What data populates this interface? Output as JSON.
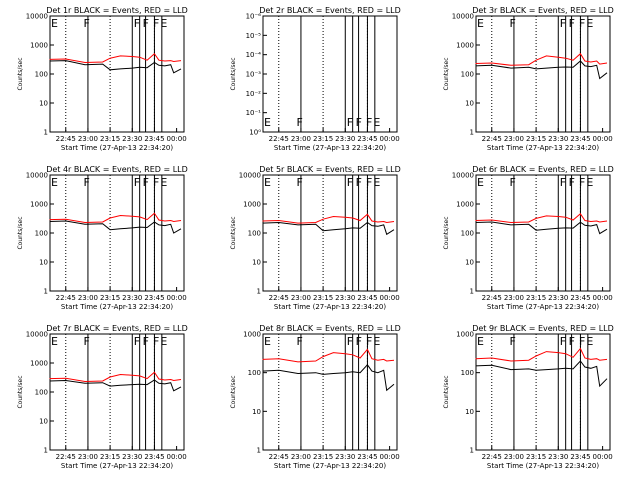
{
  "figure": {
    "background": "#ffffff",
    "event_color": "#000000",
    "lld_color": "#ff0000"
  },
  "chart_data": [
    {
      "type": "line",
      "title": "Det 1r BLACK = Events, RED = LLD",
      "xlabel": "Start Time (27-Apr-13 22:34:20)",
      "ylabel": "Counts/sec",
      "xlim": [
        "22:34:20",
        "00:05:00"
      ],
      "yscale": "log",
      "ylim": [
        1,
        10000
      ],
      "x_ticks": [
        "22:45",
        "23:00",
        "23:15",
        "23:30",
        "23:45",
        "00:00"
      ],
      "y_ticks": [
        "1",
        "10",
        "100",
        "1000",
        "10000"
      ],
      "flag_letters": [
        "E",
        "F",
        "F",
        "F",
        "F",
        "E"
      ],
      "x": [
        "22:34",
        "22:45",
        "22:58",
        "23:10",
        "23:15",
        "23:22",
        "23:30",
        "23:35",
        "23:40",
        "23:45",
        "23:48",
        "23:52",
        "23:56",
        "23:58",
        "00:03"
      ],
      "series": [
        {
          "values": [
            280,
            290,
            210,
            220,
            140,
            150,
            160,
            170,
            165,
            250,
            200,
            190,
            210,
            110,
            150
          ]
        },
        {
          "values": [
            320,
            330,
            250,
            260,
            350,
            420,
            400,
            380,
            300,
            500,
            300,
            280,
            290,
            270,
            290
          ]
        }
      ]
    },
    {
      "type": "line",
      "title": "Det 2r BLACK = Events, RED = LLD",
      "xlabel": "Start Time (27-Apr-13 22:34:20)",
      "ylabel": "Counts/sec",
      "xlim": [
        "22:34:20",
        "00:05:00"
      ],
      "yscale": "log",
      "ylim": [
        1,
        1e-06
      ],
      "x_ticks": [
        "22:45",
        "23:00",
        "23:15",
        "23:30",
        "23:45",
        "00:00"
      ],
      "y_ticks": [
        "10⁰",
        "10⁻¹",
        "10⁻²",
        "10⁻³",
        "10⁻⁴",
        "10⁻⁵",
        "10⁻⁶"
      ],
      "flag_letters": [
        "E",
        "F",
        "F",
        "F",
        "F",
        "E"
      ],
      "x": [],
      "series": []
    },
    {
      "type": "line",
      "title": "Det 3r BLACK = Events, RED = LLD",
      "xlabel": "Start Time (27-Apr-13 22:34:20)",
      "ylabel": "Counts/sec",
      "xlim": [
        "22:34:20",
        "00:05:00"
      ],
      "yscale": "log",
      "ylim": [
        1,
        10000
      ],
      "x_ticks": [
        "22:45",
        "23:00",
        "23:15",
        "23:30",
        "23:45",
        "00:00"
      ],
      "y_ticks": [
        "1",
        "10",
        "100",
        "1000",
        "10000"
      ],
      "flag_letters": [
        "E",
        "F",
        "F",
        "F",
        "F",
        "E"
      ],
      "x": [
        "22:34",
        "22:45",
        "22:58",
        "23:10",
        "23:15",
        "23:22",
        "23:30",
        "23:35",
        "23:40",
        "23:45",
        "23:48",
        "23:52",
        "23:56",
        "23:58",
        "00:03"
      ],
      "series": [
        {
          "values": [
            190,
            200,
            160,
            170,
            150,
            160,
            170,
            175,
            170,
            280,
            190,
            180,
            200,
            70,
            110
          ]
        },
        {
          "values": [
            230,
            240,
            200,
            210,
            300,
            420,
            380,
            350,
            300,
            500,
            280,
            260,
            280,
            220,
            240
          ]
        }
      ]
    },
    {
      "type": "line",
      "title": "Det 4r BLACK = Events, RED = LLD",
      "xlabel": "Start Time (27-Apr-13 22:34:20)",
      "ylabel": "Counts/sec",
      "xlim": [
        "22:34:20",
        "00:05:00"
      ],
      "yscale": "log",
      "ylim": [
        1,
        10000
      ],
      "x_ticks": [
        "22:45",
        "23:00",
        "23:15",
        "23:30",
        "23:45",
        "00:00"
      ],
      "y_ticks": [
        "1",
        "10",
        "100",
        "1000",
        "10000"
      ],
      "flag_letters": [
        "E",
        "F",
        "F",
        "F",
        "F",
        "E"
      ],
      "x": [
        "22:34",
        "22:45",
        "22:58",
        "23:10",
        "23:15",
        "23:22",
        "23:30",
        "23:35",
        "23:40",
        "23:45",
        "23:48",
        "23:52",
        "23:56",
        "23:58",
        "00:03"
      ],
      "series": [
        {
          "values": [
            250,
            260,
            200,
            210,
            130,
            140,
            150,
            160,
            155,
            240,
            190,
            180,
            200,
            100,
            140
          ]
        },
        {
          "values": [
            290,
            300,
            230,
            240,
            330,
            400,
            380,
            360,
            290,
            480,
            280,
            260,
            270,
            250,
            270
          ]
        }
      ]
    },
    {
      "type": "line",
      "title": "Det 5r BLACK = Events, RED = LLD",
      "xlabel": "Start Time (27-Apr-13 22:34:20)",
      "ylabel": "Counts/sec",
      "xlim": [
        "22:34:20",
        "00:05:00"
      ],
      "yscale": "log",
      "ylim": [
        1,
        10000
      ],
      "x_ticks": [
        "22:45",
        "23:00",
        "23:15",
        "23:30",
        "23:45",
        "00:00"
      ],
      "y_ticks": [
        "1",
        "10",
        "100",
        "1000",
        "10000"
      ],
      "flag_letters": [
        "E",
        "F",
        "F",
        "F",
        "F",
        "E"
      ],
      "x": [
        "22:34",
        "22:45",
        "22:58",
        "23:10",
        "23:15",
        "23:22",
        "23:30",
        "23:35",
        "23:40",
        "23:45",
        "23:48",
        "23:52",
        "23:56",
        "23:58",
        "00:03"
      ],
      "series": [
        {
          "values": [
            220,
            230,
            190,
            200,
            120,
            130,
            140,
            150,
            145,
            230,
            180,
            170,
            190,
            90,
            130
          ]
        },
        {
          "values": [
            260,
            270,
            220,
            230,
            300,
            370,
            350,
            330,
            270,
            440,
            260,
            240,
            250,
            230,
            250
          ]
        }
      ]
    },
    {
      "type": "line",
      "title": "Det 6r BLACK = Events, RED = LLD",
      "xlabel": "Start Time (27-Apr-13 22:34:20)",
      "ylabel": "Counts/sec",
      "xlim": [
        "22:34:20",
        "00:05:00"
      ],
      "yscale": "log",
      "ylim": [
        1,
        10000
      ],
      "x_ticks": [
        "22:45",
        "23:00",
        "23:15",
        "23:30",
        "23:45",
        "00:00"
      ],
      "y_ticks": [
        "1",
        "10",
        "100",
        "1000",
        "10000"
      ],
      "flag_letters": [
        "E",
        "F",
        "F",
        "F",
        "F",
        "E"
      ],
      "x": [
        "22:34",
        "22:45",
        "22:58",
        "23:10",
        "23:15",
        "23:22",
        "23:30",
        "23:35",
        "23:40",
        "23:45",
        "23:48",
        "23:52",
        "23:56",
        "23:58",
        "00:03"
      ],
      "series": [
        {
          "values": [
            230,
            240,
            190,
            200,
            125,
            135,
            145,
            150,
            148,
            235,
            185,
            175,
            195,
            95,
            135
          ]
        },
        {
          "values": [
            270,
            280,
            230,
            240,
            320,
            390,
            370,
            350,
            280,
            460,
            270,
            250,
            260,
            240,
            260
          ]
        }
      ]
    },
    {
      "type": "line",
      "title": "Det 7r BLACK = Events, RED = LLD",
      "xlabel": "Start Time (27-Apr-13 22:34:20)",
      "ylabel": "Counts/sec",
      "xlim": [
        "22:34:20",
        "00:05:00"
      ],
      "yscale": "log",
      "ylim": [
        1,
        10000
      ],
      "x_ticks": [
        "22:45",
        "23:00",
        "23:15",
        "23:30",
        "23:45",
        "00:00"
      ],
      "y_ticks": [
        "1",
        "10",
        "100",
        "1000",
        "10000"
      ],
      "flag_letters": [
        "E",
        "F",
        "F",
        "F",
        "F",
        "E"
      ],
      "x": [
        "22:34",
        "22:45",
        "22:58",
        "23:10",
        "23:15",
        "23:22",
        "23:30",
        "23:35",
        "23:40",
        "23:45",
        "23:48",
        "23:52",
        "23:56",
        "23:58",
        "00:03"
      ],
      "series": [
        {
          "values": [
            240,
            250,
            200,
            210,
            160,
            170,
            180,
            185,
            180,
            260,
            200,
            190,
            210,
            110,
            150
          ]
        },
        {
          "values": [
            290,
            300,
            230,
            240,
            330,
            400,
            380,
            360,
            290,
            480,
            280,
            260,
            270,
            250,
            270
          ]
        }
      ]
    },
    {
      "type": "line",
      "title": "Det 8r BLACK = Events, RED = LLD",
      "xlabel": "Start Time (27-Apr-13 22:34:20)",
      "ylabel": "Counts/sec",
      "xlim": [
        "22:34:20",
        "00:05:00"
      ],
      "yscale": "log",
      "ylim": [
        1,
        1000
      ],
      "x_ticks": [
        "22:45",
        "23:00",
        "23:15",
        "23:30",
        "23:45",
        "00:00"
      ],
      "y_ticks": [
        "1",
        "10",
        "100",
        "1000"
      ],
      "flag_letters": [
        "E",
        "F",
        "F",
        "F",
        "F",
        "E"
      ],
      "x": [
        "22:34",
        "22:45",
        "22:58",
        "23:10",
        "23:15",
        "23:22",
        "23:30",
        "23:35",
        "23:40",
        "23:45",
        "23:48",
        "23:52",
        "23:56",
        "23:58",
        "00:03"
      ],
      "series": [
        {
          "values": [
            110,
            115,
            95,
            100,
            90,
            95,
            100,
            105,
            100,
            160,
            110,
            100,
            115,
            35,
            50
          ]
        },
        {
          "values": [
            220,
            230,
            190,
            200,
            260,
            330,
            310,
            290,
            240,
            400,
            230,
            210,
            220,
            200,
            210
          ]
        }
      ]
    },
    {
      "type": "line",
      "title": "Det 9r BLACK = Events, RED = LLD",
      "xlabel": "Start Time (27-Apr-13 22:34:20)",
      "ylabel": "Counts/sec",
      "xlim": [
        "22:34:20",
        "00:05:00"
      ],
      "yscale": "log",
      "ylim": [
        1,
        1000
      ],
      "x_ticks": [
        "22:45",
        "23:00",
        "23:15",
        "23:30",
        "23:45",
        "00:00"
      ],
      "y_ticks": [
        "1",
        "10",
        "100",
        "1000"
      ],
      "flag_letters": [
        "E",
        "F",
        "F",
        "F",
        "F",
        "E"
      ],
      "x": [
        "22:34",
        "22:45",
        "22:58",
        "23:10",
        "23:15",
        "23:22",
        "23:30",
        "23:35",
        "23:40",
        "23:45",
        "23:48",
        "23:52",
        "23:56",
        "23:58",
        "00:03"
      ],
      "series": [
        {
          "values": [
            150,
            155,
            120,
            125,
            115,
            120,
            125,
            130,
            125,
            200,
            140,
            130,
            145,
            45,
            70
          ]
        },
        {
          "values": [
            230,
            240,
            200,
            210,
            270,
            350,
            330,
            310,
            250,
            420,
            240,
            220,
            230,
            210,
            220
          ]
        }
      ]
    }
  ]
}
